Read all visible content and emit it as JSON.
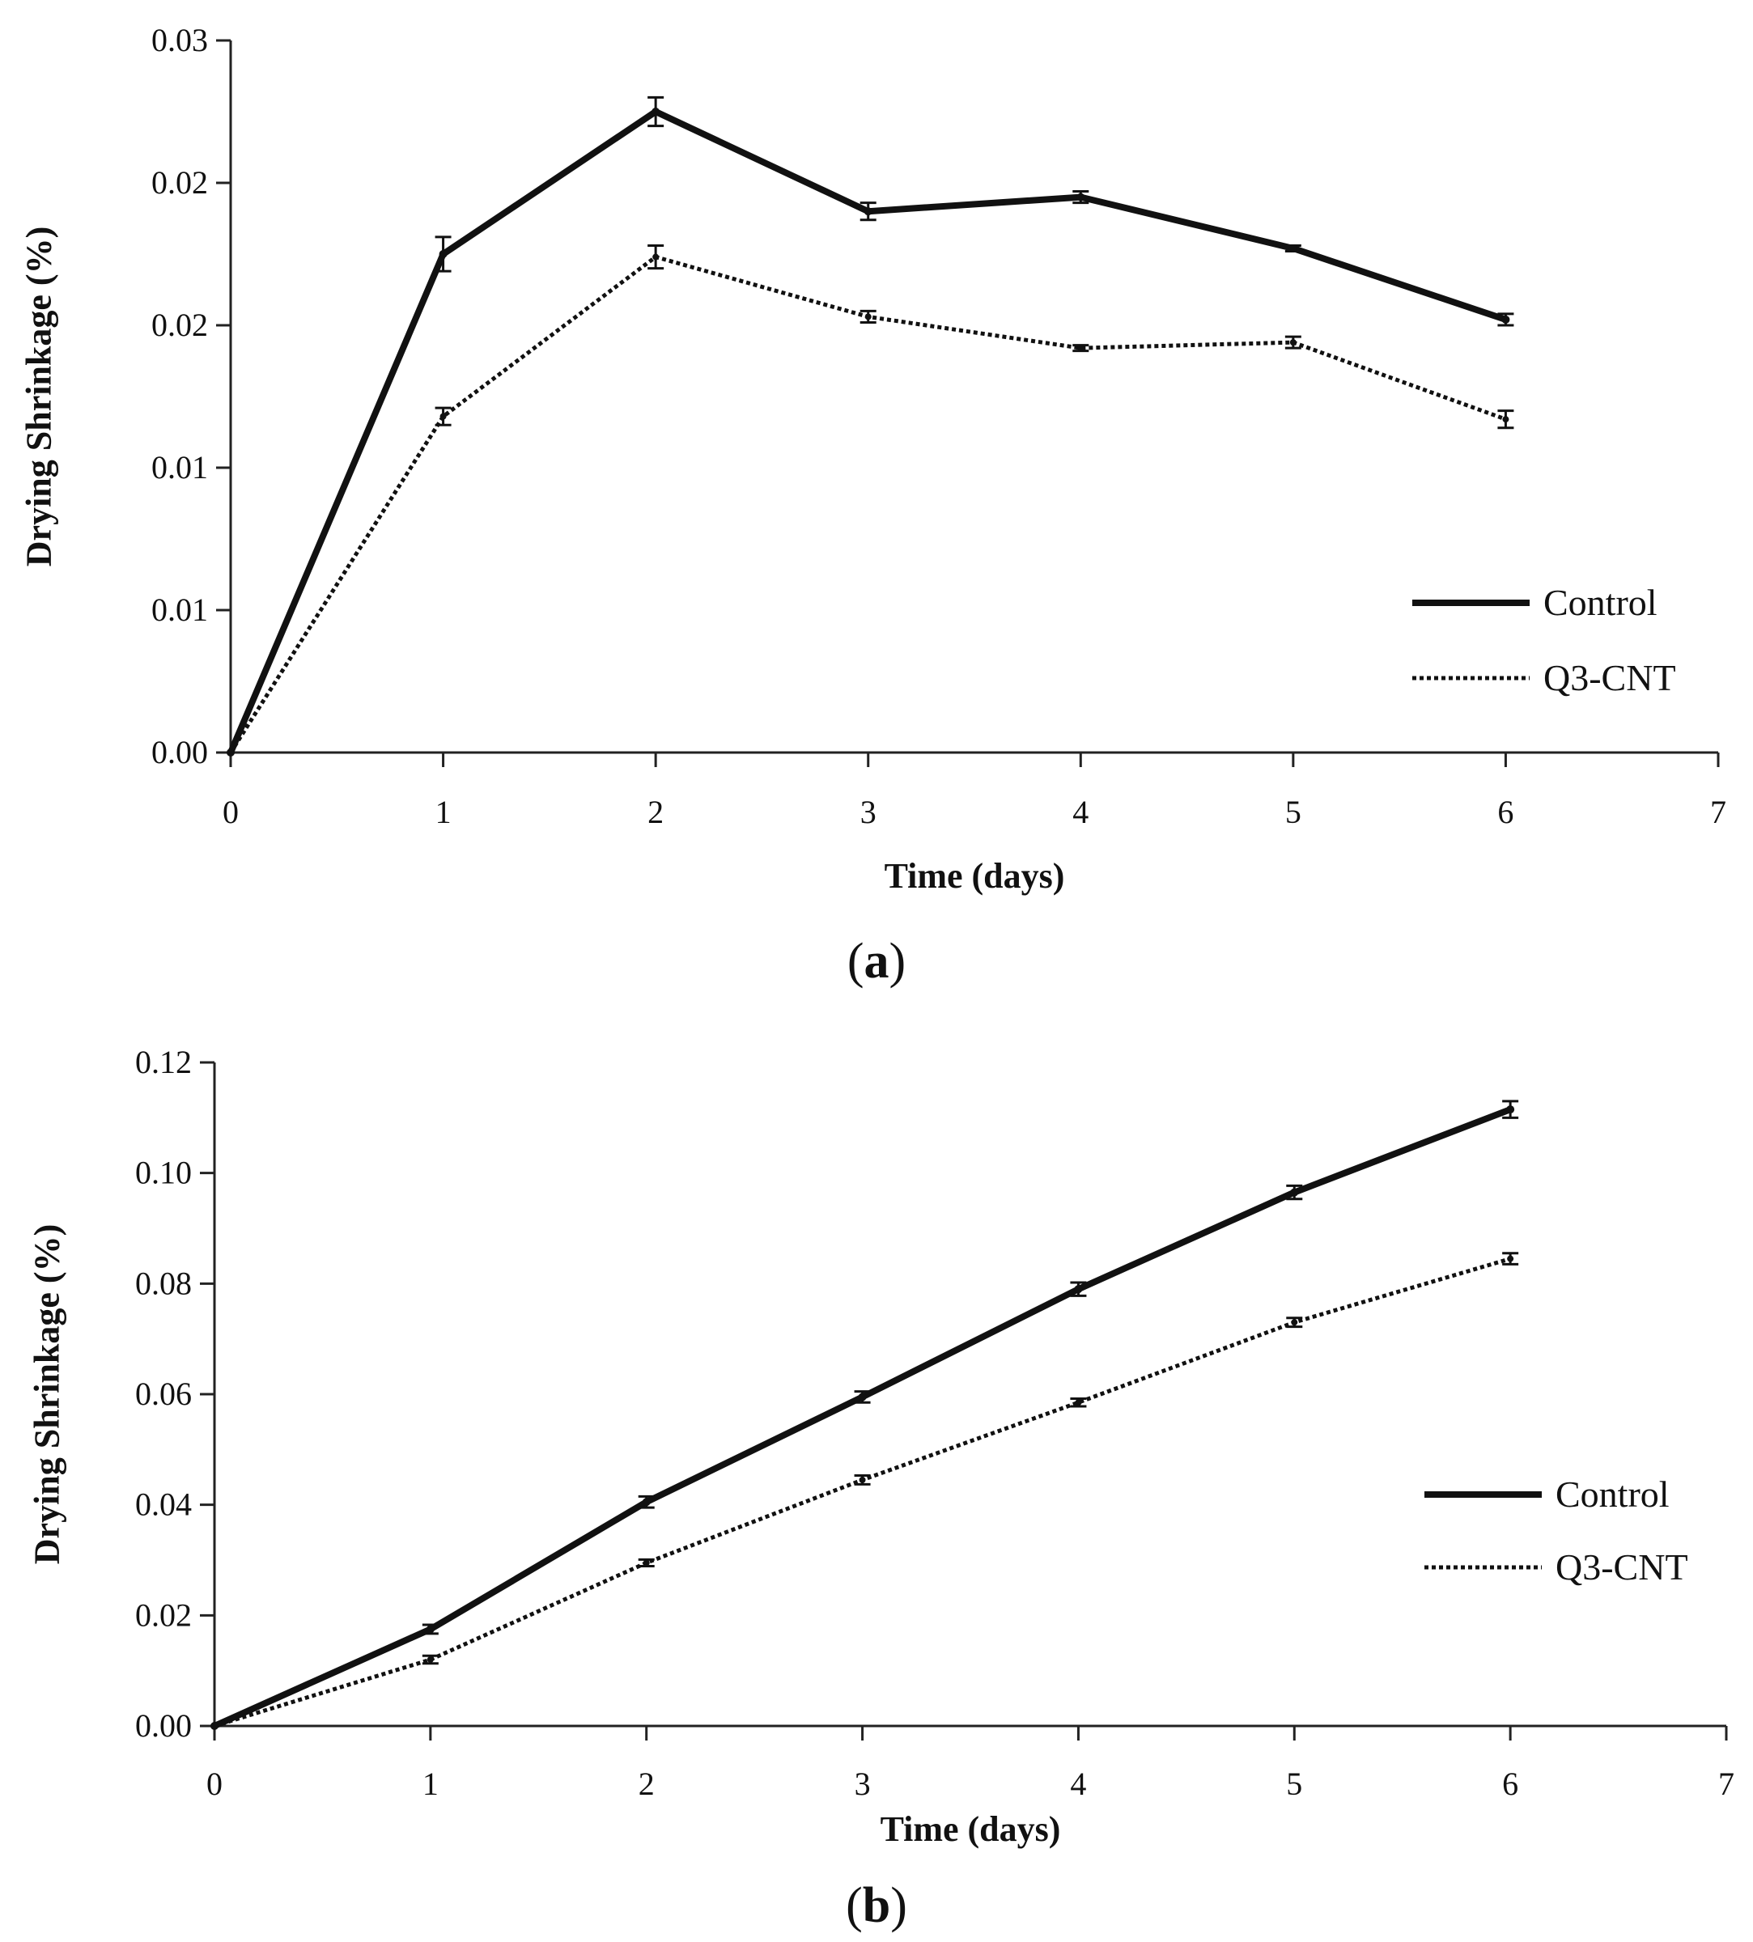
{
  "chart_data": [
    {
      "panel": "a",
      "caption_letter": "a",
      "type": "line",
      "xlabel": "Time (days)",
      "ylabel": "Drying Shrinkage (%)",
      "xlim": [
        0,
        7
      ],
      "x_ticks": [
        "0",
        "1",
        "2",
        "3",
        "4",
        "5",
        "6",
        "7"
      ],
      "ylim": [
        0,
        0.025
      ],
      "y_ticks": [
        "0.00",
        "0.01",
        "0.01",
        "0.02",
        "0.02",
        "0.03"
      ],
      "y_tick_values": [
        0,
        0.005,
        0.01,
        0.015,
        0.02,
        0.025
      ],
      "grid": false,
      "legend_position": "bottom-right",
      "x": [
        0,
        1,
        2,
        3,
        4,
        5,
        6
      ],
      "series": [
        {
          "name": "Control",
          "style": "solid",
          "values": [
            0,
            0.0175,
            0.0225,
            0.019,
            0.0195,
            0.0177,
            0.0152
          ],
          "errors": [
            0,
            0.0006,
            0.0005,
            0.0003,
            0.0002,
            0.0001,
            0.0002
          ]
        },
        {
          "name": "Q3-CNT",
          "style": "dotted",
          "values": [
            0,
            0.0118,
            0.0174,
            0.0153,
            0.0142,
            0.0144,
            0.0117
          ],
          "errors": [
            0,
            0.0003,
            0.0004,
            0.0002,
            0.0001,
            0.0002,
            0.0003
          ]
        }
      ]
    },
    {
      "panel": "b",
      "caption_letter": "b",
      "type": "line",
      "xlabel": "Time (days)",
      "ylabel": "Drying Shrinkage (%)",
      "xlim": [
        0,
        7
      ],
      "x_ticks": [
        "0",
        "1",
        "2",
        "3",
        "4",
        "5",
        "6",
        "7"
      ],
      "ylim": [
        0,
        0.12
      ],
      "y_ticks": [
        "0.00",
        "0.02",
        "0.04",
        "0.06",
        "0.08",
        "0.10",
        "0.12"
      ],
      "y_tick_values": [
        0,
        0.02,
        0.04,
        0.06,
        0.08,
        0.1,
        0.12
      ],
      "grid": false,
      "legend_position": "bottom-right",
      "x": [
        0,
        1,
        2,
        3,
        4,
        5,
        6
      ],
      "series": [
        {
          "name": "Control",
          "style": "solid",
          "values": [
            0,
            0.0175,
            0.0405,
            0.0595,
            0.079,
            0.0965,
            0.1115
          ],
          "errors": [
            0,
            0.0008,
            0.001,
            0.001,
            0.0012,
            0.0012,
            0.0015
          ]
        },
        {
          "name": "Q3-CNT",
          "style": "dotted",
          "values": [
            0,
            0.012,
            0.0295,
            0.0445,
            0.0585,
            0.073,
            0.0845
          ],
          "errors": [
            0,
            0.0007,
            0.0006,
            0.0008,
            0.0007,
            0.0008,
            0.001
          ]
        }
      ]
    }
  ]
}
